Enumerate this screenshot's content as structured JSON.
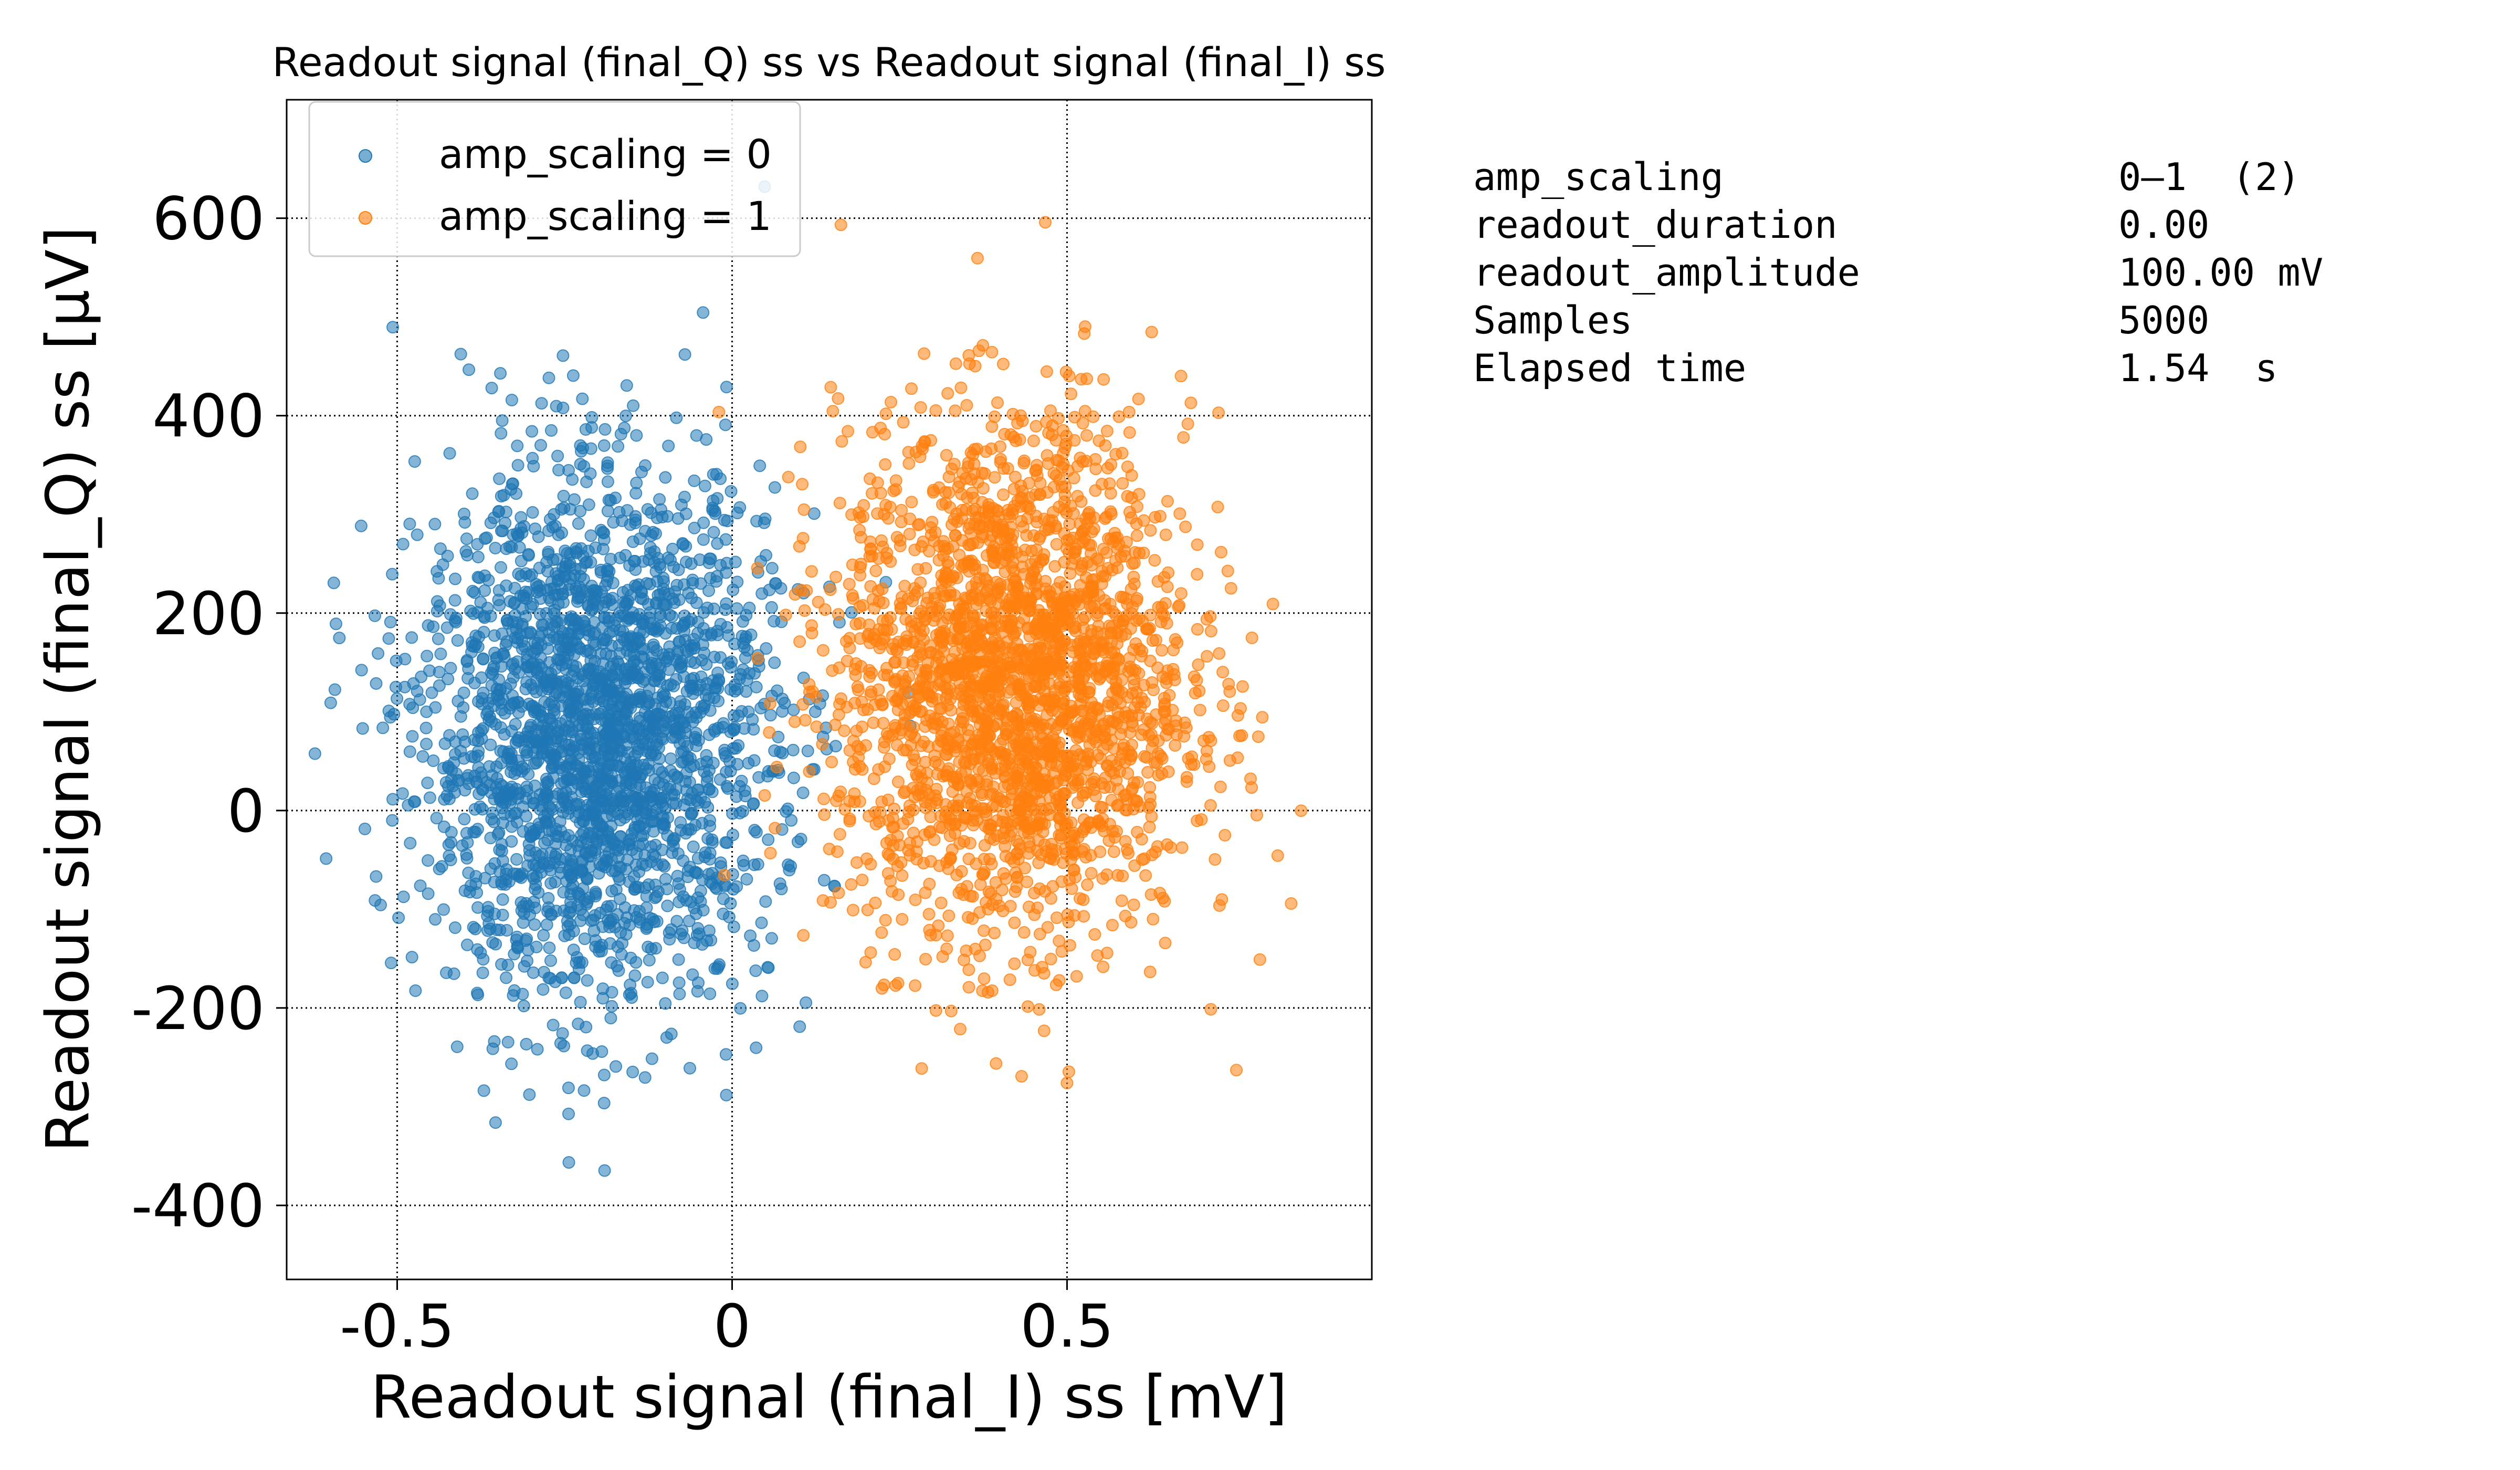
{
  "chart_data": {
    "type": "scatter",
    "title": "Readout signal (final_Q) ss vs Readout signal (final_I) ss",
    "xlabel": "Readout signal (final_I) ss [mV]",
    "ylabel": "Readout signal (final_Q) ss [μV]",
    "xlim": [
      -0.665,
      0.955
    ],
    "ylim": [
      -475,
      720
    ],
    "xticks": [
      -0.5,
      0,
      0.5
    ],
    "xtick_labels": [
      "-0.5",
      "0",
      "0.5"
    ],
    "yticks": [
      -400,
      -200,
      0,
      200,
      400,
      600
    ],
    "ytick_labels": [
      "-400",
      "-200",
      "0",
      "200",
      "400",
      "600"
    ],
    "grid": true,
    "legend_placement": "top-left",
    "series": [
      {
        "name": "amp_scaling = 0",
        "color": "#1f77b4",
        "count": 2500,
        "center": [
          -0.2,
          75
        ],
        "spread": [
          0.13,
          130
        ]
      },
      {
        "name": "amp_scaling = 1",
        "color": "#ff7f0e",
        "count": 2500,
        "center": [
          0.42,
          130
        ],
        "spread": [
          0.13,
          130
        ]
      }
    ]
  },
  "info_table": [
    {
      "key": "amp_scaling",
      "value": "0–1  (2)"
    },
    {
      "key": "readout_duration",
      "value": "0.00"
    },
    {
      "key": "readout_amplitude",
      "value": "100.00 mV"
    },
    {
      "key": "Samples",
      "value": "5000"
    },
    {
      "key": "Elapsed time",
      "value": "1.54  s"
    }
  ]
}
